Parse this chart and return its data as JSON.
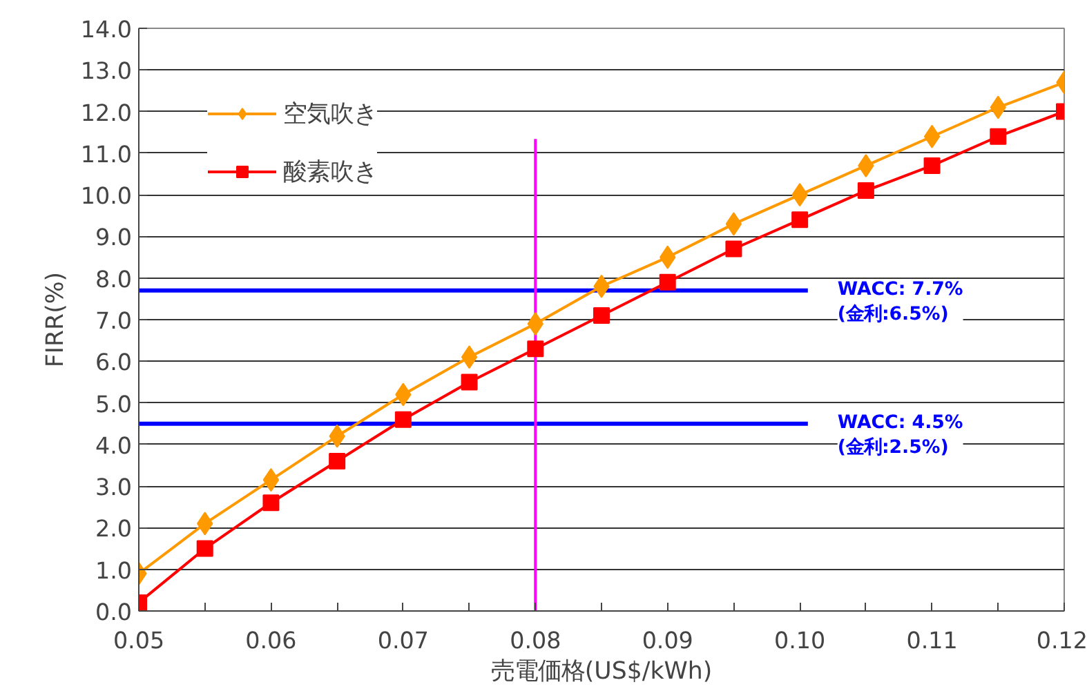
{
  "chart_data": {
    "type": "line",
    "xlabel": "売電価格(US$/kWh)",
    "ylabel": "FIRR(%)",
    "x": [
      0.05,
      0.055,
      0.06,
      0.065,
      0.07,
      0.075,
      0.08,
      0.085,
      0.09,
      0.095,
      0.1,
      0.105,
      0.11,
      0.115,
      0.12
    ],
    "series": [
      {
        "name": "空気吹き",
        "color": "#ff9900",
        "marker": "diamond",
        "values": [
          0.9,
          2.1,
          3.15,
          4.2,
          5.2,
          6.1,
          6.9,
          7.8,
          8.5,
          9.3,
          10.0,
          10.7,
          11.4,
          12.1,
          12.7
        ]
      },
      {
        "name": "酸素吹き",
        "color": "#ff0000",
        "marker": "square",
        "values": [
          0.2,
          1.5,
          2.6,
          3.6,
          4.6,
          5.5,
          6.3,
          7.1,
          7.9,
          8.7,
          9.4,
          10.1,
          10.7,
          11.4,
          12.0
        ]
      }
    ],
    "xlim": [
      0.05,
      0.12
    ],
    "ylim": [
      0,
      14
    ],
    "xticks": [
      {
        "value": 0.05,
        "label": "0.05"
      },
      {
        "value": 0.055,
        "label": null
      },
      {
        "value": 0.06,
        "label": "0.06"
      },
      {
        "value": 0.065,
        "label": null
      },
      {
        "value": 0.07,
        "label": "0.07"
      },
      {
        "value": 0.075,
        "label": null
      },
      {
        "value": 0.08,
        "label": "0.08"
      },
      {
        "value": 0.085,
        "label": null
      },
      {
        "value": 0.09,
        "label": "0.09"
      },
      {
        "value": 0.095,
        "label": null
      },
      {
        "value": 0.1,
        "label": "0.10"
      },
      {
        "value": 0.105,
        "label": null
      },
      {
        "value": 0.11,
        "label": "0.11"
      },
      {
        "value": 0.115,
        "label": null
      },
      {
        "value": 0.12,
        "label": "0.12"
      }
    ],
    "yticks": [
      {
        "value": 0,
        "label": "0.0"
      },
      {
        "value": 1,
        "label": "1.0"
      },
      {
        "value": 2,
        "label": "2.0"
      },
      {
        "value": 3,
        "label": "3.0"
      },
      {
        "value": 4,
        "label": "4.0"
      },
      {
        "value": 5,
        "label": "5.0"
      },
      {
        "value": 6,
        "label": "6.0"
      },
      {
        "value": 7,
        "label": "7.0"
      },
      {
        "value": 8,
        "label": "8.0"
      },
      {
        "value": 9,
        "label": "9.0"
      },
      {
        "value": 10,
        "label": "10.0"
      },
      {
        "value": 11,
        "label": "11.0"
      },
      {
        "value": 12,
        "label": "12.0"
      },
      {
        "value": 13,
        "label": "13.0"
      },
      {
        "value": 14,
        "label": "14.0"
      }
    ],
    "ref_lines": [
      {
        "axis": "y",
        "value": 7.7,
        "label": "WACC: 7.7%\n(金利:6.5%)",
        "color": "#0000ff"
      },
      {
        "axis": "y",
        "value": 4.5,
        "label": "WACC: 4.5%\n(金利:2.5%)",
        "color": "#0000ff"
      },
      {
        "axis": "x",
        "value": 0.08,
        "color": "#ff00ff"
      }
    ],
    "grid": "y",
    "legend": "top left",
    "line_style": "solid"
  }
}
